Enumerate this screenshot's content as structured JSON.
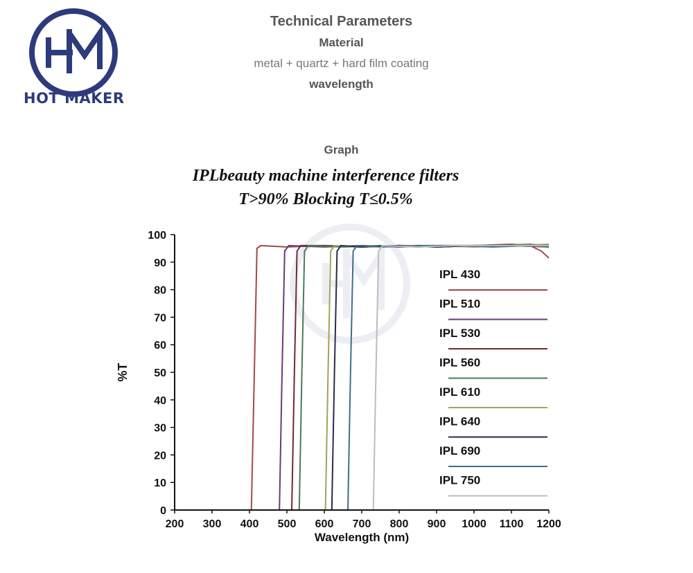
{
  "logo": {
    "text": "HOT MAKER",
    "color": "#2d3a7c"
  },
  "header": {
    "heading": "Technical Parameters",
    "material_label": "Material",
    "material_value": "metal + quartz + hard film coating",
    "wavelength_label": "wavelength",
    "graph_label": "Graph"
  },
  "chart_data": {
    "type": "line",
    "title": "IPLbeauty machine interference filters",
    "subtitle": "T>90% Blocking T≤0.5%",
    "xlabel": "Wavelength (nm)",
    "ylabel": "%T",
    "xlim": [
      200,
      1200
    ],
    "ylim": [
      0,
      100
    ],
    "x_ticks": [
      200,
      300,
      400,
      500,
      600,
      700,
      800,
      900,
      1000,
      1100,
      1200
    ],
    "y_ticks": [
      0,
      10,
      20,
      30,
      40,
      50,
      60,
      70,
      80,
      90,
      100
    ],
    "grid": false,
    "legend_position": "right",
    "series": [
      {
        "name": "IPL 430",
        "color": "#a04848",
        "cutoff": 413,
        "points": [
          [
            200,
            0
          ],
          [
            405,
            0
          ],
          [
            413,
            50
          ],
          [
            420,
            95
          ],
          [
            430,
            96
          ],
          [
            500,
            95.5
          ],
          [
            600,
            96
          ],
          [
            700,
            95.5
          ],
          [
            800,
            96
          ],
          [
            900,
            95.5
          ],
          [
            1000,
            96
          ],
          [
            1100,
            96.5
          ],
          [
            1150,
            96
          ],
          [
            1180,
            94
          ],
          [
            1200,
            91.5
          ]
        ]
      },
      {
        "name": "IPL 510",
        "color": "#6a3a78",
        "cutoff": 487,
        "points": [
          [
            200,
            0
          ],
          [
            480,
            0
          ],
          [
            487,
            50
          ],
          [
            494,
            94
          ],
          [
            505,
            96
          ],
          [
            600,
            95.5
          ],
          [
            700,
            96
          ],
          [
            800,
            95.5
          ],
          [
            900,
            96
          ],
          [
            1000,
            96
          ],
          [
            1100,
            96
          ],
          [
            1200,
            95.5
          ]
        ]
      },
      {
        "name": "IPL 530",
        "color": "#6e2a30",
        "cutoff": 520,
        "points": [
          [
            200,
            0
          ],
          [
            513,
            0
          ],
          [
            520,
            50
          ],
          [
            527,
            94
          ],
          [
            537,
            96
          ],
          [
            600,
            96
          ],
          [
            700,
            95.5
          ],
          [
            800,
            96
          ],
          [
            900,
            95.5
          ],
          [
            1000,
            96
          ],
          [
            1100,
            96
          ],
          [
            1200,
            96
          ]
        ]
      },
      {
        "name": "IPL 560",
        "color": "#4a7a56",
        "cutoff": 540,
        "points": [
          [
            200,
            0
          ],
          [
            533,
            0
          ],
          [
            540,
            50
          ],
          [
            547,
            94
          ],
          [
            557,
            96
          ],
          [
            650,
            95.5
          ],
          [
            750,
            96
          ],
          [
            850,
            95.5
          ],
          [
            950,
            96
          ],
          [
            1050,
            96
          ],
          [
            1150,
            96.5
          ],
          [
            1200,
            96
          ]
        ]
      },
      {
        "name": "IPL 610",
        "color": "#a3a257",
        "cutoff": 610,
        "points": [
          [
            200,
            0
          ],
          [
            603,
            0
          ],
          [
            610,
            50
          ],
          [
            617,
            94
          ],
          [
            627,
            96
          ],
          [
            700,
            95.5
          ],
          [
            800,
            96
          ],
          [
            900,
            96
          ],
          [
            1000,
            95.5
          ],
          [
            1100,
            96
          ],
          [
            1200,
            96.5
          ]
        ]
      },
      {
        "name": "IPL 640",
        "color": "#2a2a48",
        "cutoff": 627,
        "points": [
          [
            200,
            0
          ],
          [
            620,
            0
          ],
          [
            627,
            50
          ],
          [
            634,
            94
          ],
          [
            644,
            96
          ],
          [
            700,
            95.5
          ],
          [
            800,
            96
          ],
          [
            900,
            95.5
          ],
          [
            1000,
            96
          ],
          [
            1100,
            96
          ],
          [
            1200,
            96
          ]
        ]
      },
      {
        "name": "IPL 690",
        "color": "#3e6e86",
        "cutoff": 670,
        "points": [
          [
            200,
            0
          ],
          [
            663,
            0
          ],
          [
            670,
            50
          ],
          [
            677,
            94
          ],
          [
            687,
            96
          ],
          [
            750,
            95.5
          ],
          [
            850,
            96
          ],
          [
            950,
            96
          ],
          [
            1050,
            95.5
          ],
          [
            1150,
            96
          ],
          [
            1200,
            95.5
          ]
        ]
      },
      {
        "name": "IPL 750",
        "color": "#bcbcbc",
        "cutoff": 738,
        "points": [
          [
            200,
            0
          ],
          [
            731,
            0
          ],
          [
            738,
            50
          ],
          [
            745,
            94
          ],
          [
            755,
            96
          ],
          [
            850,
            95.5
          ],
          [
            950,
            96
          ],
          [
            1050,
            96
          ],
          [
            1150,
            96
          ],
          [
            1200,
            96
          ]
        ]
      }
    ]
  }
}
